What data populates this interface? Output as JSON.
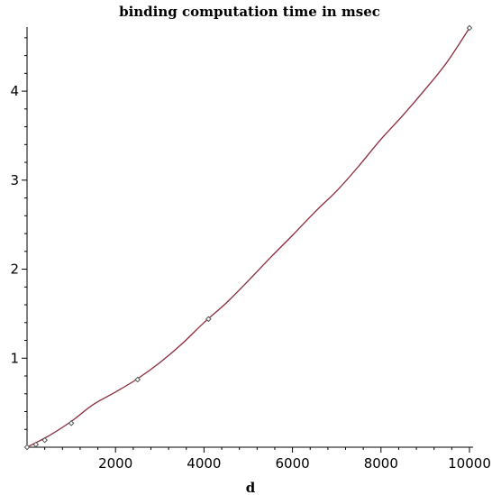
{
  "chart_data": {
    "type": "line",
    "title": "binding computation time in msec",
    "xlabel": "d",
    "ylabel": "",
    "xlim": [
      0,
      10000
    ],
    "ylim": [
      0,
      4.72
    ],
    "x_ticks": [
      2000,
      4000,
      6000,
      8000,
      10000
    ],
    "x_tick_labels": [
      "2000",
      "4000",
      "6000",
      "8000",
      "10000"
    ],
    "y_ticks": [
      1,
      2,
      3,
      4
    ],
    "y_tick_labels": [
      "1",
      "2",
      "3",
      "4"
    ],
    "grid": false,
    "series": [
      {
        "kind": "fit-curve",
        "color": "#8b2a3a",
        "x": [
          0,
          500,
          1000,
          1500,
          2000,
          2500,
          3000,
          3500,
          4000,
          4500,
          5000,
          5500,
          6000,
          6500,
          7000,
          7500,
          8000,
          8500,
          9000,
          9500,
          10000
        ],
        "values": [
          0.0,
          0.13,
          0.29,
          0.48,
          0.62,
          0.77,
          0.95,
          1.16,
          1.4,
          1.62,
          1.87,
          2.13,
          2.38,
          2.64,
          2.88,
          3.16,
          3.46,
          3.73,
          4.02,
          4.33,
          4.71
        ]
      },
      {
        "kind": "measured-points",
        "color": "#555555",
        "x": [
          0,
          200,
          400,
          1000,
          2500,
          4100,
          10000
        ],
        "values": [
          0.0,
          0.03,
          0.08,
          0.27,
          0.76,
          1.44,
          4.71
        ]
      }
    ]
  }
}
